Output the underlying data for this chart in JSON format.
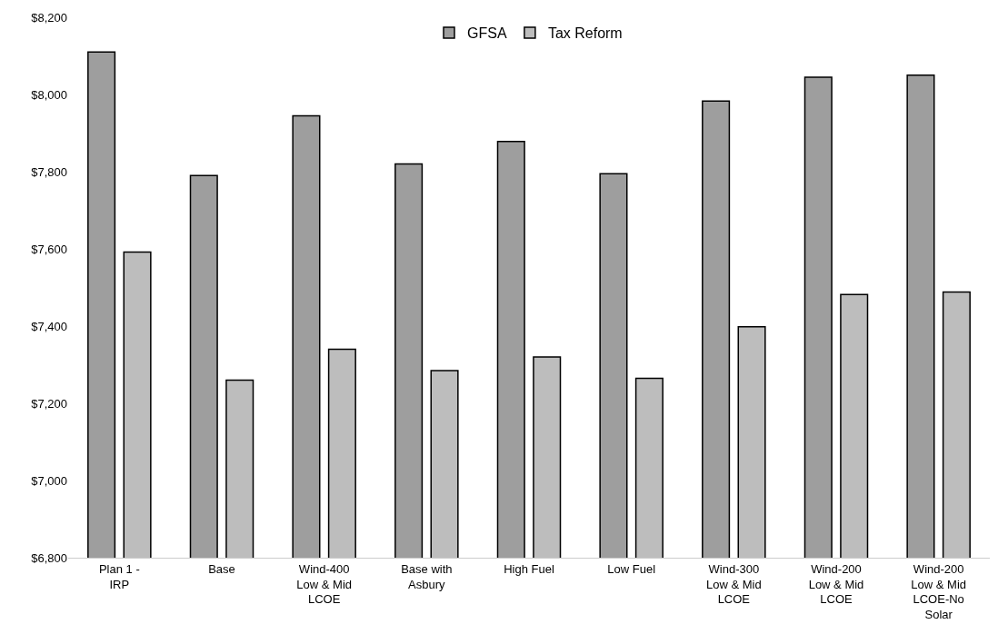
{
  "chart_data": {
    "type": "bar",
    "categories": [
      "Plan 1 - IRP",
      "Base",
      "Wind-400 Low & Mid LCOE",
      "Base with Asbury",
      "High Fuel",
      "Low Fuel",
      "Wind-300 Low & Mid LCOE",
      "Wind-200 Low & Mid LCOE",
      "Wind-200 Low & Mid LCOE-No Solar"
    ],
    "series": [
      {
        "name": "GFSA",
        "color": "#9e9e9e",
        "values": [
          8110,
          7790,
          7945,
          7820,
          7878,
          7795,
          7983,
          8045,
          8050
        ]
      },
      {
        "name": "Tax Reform",
        "color": "#bdbdbd",
        "values": [
          7592,
          7260,
          7340,
          7285,
          7320,
          7265,
          7398,
          7482,
          7488
        ]
      }
    ],
    "ylim": [
      6800,
      8200
    ],
    "yticks": [
      {
        "value": 6800,
        "label": "$6,800"
      },
      {
        "value": 7000,
        "label": "$7,000"
      },
      {
        "value": 7200,
        "label": "$7,200"
      },
      {
        "value": 7400,
        "label": "$7,400"
      },
      {
        "value": 7600,
        "label": "$7,600"
      },
      {
        "value": 7800,
        "label": "$7,800"
      },
      {
        "value": 8000,
        "label": "$8,000"
      },
      {
        "value": 8200,
        "label": "$8,200"
      }
    ],
    "legend": "top"
  }
}
